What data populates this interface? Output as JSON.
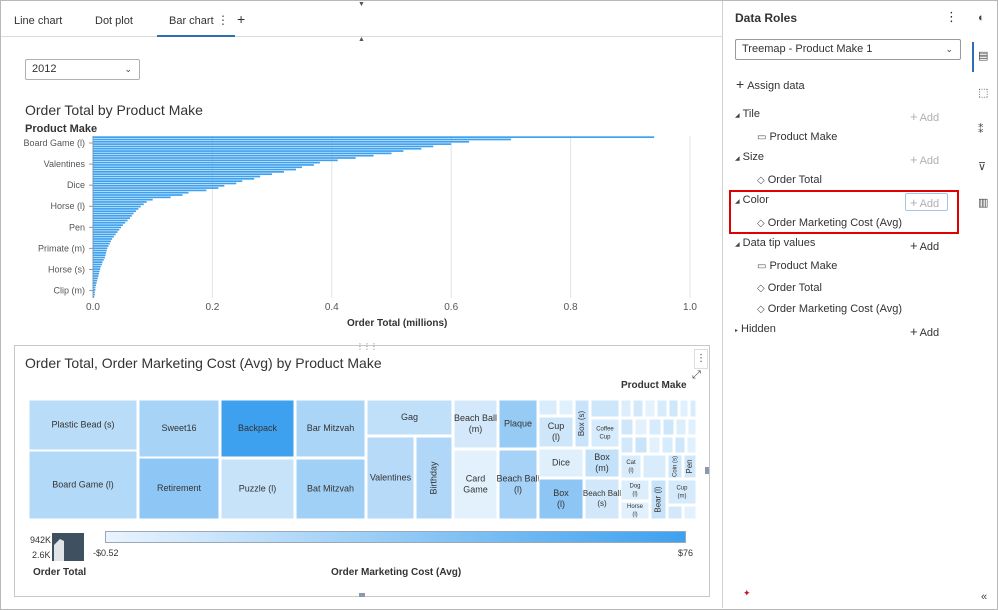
{
  "tabs": [
    {
      "label": "Line chart"
    },
    {
      "label": "Dot plot"
    },
    {
      "label": "Bar chart",
      "active": true
    }
  ],
  "tab_menu_icon": "more-vertical-icon",
  "tab_add_icon": "plus-icon",
  "year_select": {
    "value": "2012"
  },
  "bar_chart": {
    "title": "Order Total by Product Make",
    "axis_title": "Product Make"
  },
  "chart_data": [
    {
      "type": "bar",
      "orientation": "horizontal",
      "title": "Order Total by Product Make",
      "ylabel": "Product Make",
      "xlabel": "Order Total (millions)",
      "xlim": [
        0,
        1.0
      ],
      "xticks": [
        "0.0",
        "0.2",
        "0.4",
        "0.6",
        "0.8",
        "1.0"
      ],
      "grid": true,
      "color": "#3ea1ef",
      "category_labels_shown": [
        "Board Game (l)",
        "Valentines",
        "Dice",
        "Horse (l)",
        "Pen",
        "Primate (m)",
        "Horse (s)",
        "Clip (m)"
      ],
      "values": [
        0.94,
        0.7,
        0.63,
        0.6,
        0.57,
        0.55,
        0.52,
        0.5,
        0.47,
        0.44,
        0.41,
        0.38,
        0.37,
        0.35,
        0.34,
        0.32,
        0.3,
        0.28,
        0.27,
        0.25,
        0.24,
        0.22,
        0.21,
        0.19,
        0.16,
        0.15,
        0.13,
        0.1,
        0.09,
        0.085,
        0.08,
        0.076,
        0.072,
        0.068,
        0.065,
        0.062,
        0.058,
        0.054,
        0.05,
        0.047,
        0.044,
        0.041,
        0.038,
        0.035,
        0.032,
        0.03,
        0.028,
        0.026,
        0.024,
        0.023,
        0.022,
        0.021,
        0.02,
        0.018,
        0.016,
        0.015,
        0.013,
        0.012,
        0.011,
        0.01,
        0.009,
        0.008,
        0.007,
        0.006,
        0.005,
        0.004,
        0.004,
        0.003,
        0.003,
        0.002
      ]
    },
    {
      "type": "treemap",
      "title": "Order Total, Order Marketing Cost (Avg) by Product Make",
      "tiles": [
        {
          "label": "Plastic Bead (s)",
          "color": "#b9dcf8"
        },
        {
          "label": "Board Game (l)",
          "color": "#b3d9f8"
        },
        {
          "label": "Sweet16",
          "color": "#a7d3f7"
        },
        {
          "label": "Retirement",
          "color": "#8ec7f5"
        },
        {
          "label": "Backpack",
          "color": "#3ea1ef"
        },
        {
          "label": "Puzzle (l)",
          "color": "#c6e3fa"
        },
        {
          "label": "Bar Mitzvah",
          "color": "#abd5f7"
        },
        {
          "label": "Bat Mitzvah",
          "color": "#a0d0f6"
        },
        {
          "label": "Gag",
          "color": "#c0e0f9"
        },
        {
          "label": "Valentines",
          "color": "#b6daf8"
        },
        {
          "label": "Birthday",
          "color": "#b0d7f8"
        },
        {
          "label": "Beach Ball (m)",
          "color": "#d3e9fb"
        },
        {
          "label": "Plaque",
          "color": "#96cbf5"
        },
        {
          "label": "Card Game",
          "color": "#e3f1fc"
        },
        {
          "label": "Beach Ball (l)",
          "color": "#a6d2f7"
        },
        {
          "label": "Cup (l)",
          "color": "#cde6fa"
        },
        {
          "label": "Box (s)",
          "color": "#c9e4fa"
        },
        {
          "label": "Coffee Cup",
          "color": "#d6ebfb"
        },
        {
          "label": "Dice",
          "color": "#dfeffc"
        },
        {
          "label": "Box (m)",
          "color": "#c3e1f9"
        },
        {
          "label": "Cat (l)",
          "color": "#d9ecfb"
        },
        {
          "label": "Coin (s)",
          "color": "#cfe7fa"
        },
        {
          "label": "Pen",
          "color": "#d0e7fa"
        },
        {
          "label": "Box (l)",
          "color": "#8dc6f5"
        },
        {
          "label": "Beach Ball (s)",
          "color": "#d2e8fa"
        },
        {
          "label": "Dog (l)",
          "color": "#dcedfb"
        },
        {
          "label": "Horse (l)",
          "color": "#e0f0fc"
        },
        {
          "label": "Bear (l)",
          "color": "#c6e3fa"
        },
        {
          "label": "Cup (m)",
          "color": "#d5eafb"
        }
      ],
      "legend_title": "Product Make",
      "size_legend": {
        "label": "Order Total",
        "max": "942K",
        "min": "2.6K"
      },
      "color_legend": {
        "label": "Order Marketing Cost (Avg)",
        "min": "-$0.52",
        "max": "$76",
        "color_from": "#eaf4fd",
        "color_to": "#3ea1ef"
      }
    }
  ],
  "treemap_panel": {
    "title": "Order Total, Order Marketing Cost (Avg) by Product Make",
    "legend_title": "Product Make",
    "size_legend_label": "Order Total",
    "size_max": "942K",
    "size_min": "2.6K",
    "color_legend_label": "Order Marketing Cost (Avg)",
    "color_min": "-$0.52",
    "color_max": "$76",
    "menu_icon": "more-vertical-icon",
    "expand_icon": "expand-icon"
  },
  "data_roles": {
    "title": "Data Roles",
    "object_select": "Treemap - Product Make 1",
    "assign_label": "Assign data",
    "add_label": "Add",
    "roles": [
      {
        "name": "Tile",
        "items": [
          "Product Make"
        ],
        "add_enabled": false
      },
      {
        "name": "Size",
        "items": [
          "Order Total"
        ],
        "add_enabled": false
      },
      {
        "name": "Color",
        "items": [
          "Order Marketing Cost (Avg)"
        ],
        "add_enabled": false
      },
      {
        "name": "Data tip values",
        "items": [
          "Product Make",
          "Order Total",
          "Order Marketing Cost (Avg)"
        ],
        "add_enabled": true
      },
      {
        "name": "Hidden",
        "items": [],
        "add_enabled": true
      }
    ]
  },
  "rail_icons": [
    "paint-palette-icon",
    "data-roles-icon",
    "actions-icon",
    "rules-icon",
    "filter-icon",
    "ranks-icon"
  ],
  "colors": {
    "accent": "#2e6eb5",
    "bar": "#3ea1ef",
    "highlight": "#e00000"
  }
}
